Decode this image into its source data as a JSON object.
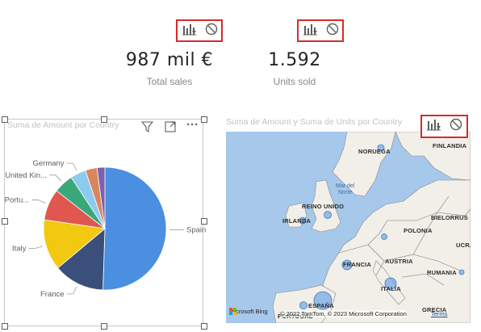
{
  "kpis": [
    {
      "value": "987 mil €",
      "label": "Total sales"
    },
    {
      "value": "1.592",
      "label": "Units sold"
    }
  ],
  "pie_visual": {
    "title": "Suma de Amount por Country",
    "header_icons": [
      "filter-icon",
      "focus-mode-icon",
      "more-options-icon"
    ],
    "more_glyph": "···"
  },
  "map_visual": {
    "title": "Suma de Amount y Suma de Units por Country",
    "labels": {
      "noruega": "NORUEGA",
      "finlandia": "FINLANDIA",
      "mar_del_norte": "Mar del Norte",
      "reino_unido": "REINO UNIDO",
      "irlanda": "IRLANDA",
      "bielorrusia": "BIELORRUS",
      "polonia": "POLONIA",
      "ucrania": "UCRA",
      "francia": "FRANCIA",
      "austria": "AUSTRIA",
      "rumania": "RUMANIA",
      "italia": "ITALIA",
      "espana": "ESPAÑA",
      "portugal": "PORTUGAL",
      "grecia": "GRECIA"
    },
    "attribution": "Microsoft Bing",
    "copyright": "© 2022 TomTom, © 2023 Microsoft Corporation",
    "terms": "Terms"
  },
  "analytics_icons": [
    "analytics-icon",
    "do-not-disturb-icon"
  ],
  "colors": {
    "highlight_border": "#d62b2b",
    "spain": "#4a8fe0",
    "france": "#3a4f7a",
    "italy": "#f2c811",
    "portugal": "#e0574f",
    "united_kingdom": "#3aa878",
    "germany": "#8ccbee",
    "slice7": "#d9865e",
    "slice8": "#7b61b0"
  },
  "chart_data": {
    "type": "pie",
    "title": "Suma de Amount por Country",
    "categories": [
      "Spain",
      "France",
      "Italy",
      "Portu...",
      "United Kin...",
      "Germany",
      "",
      ""
    ],
    "values": [
      49,
      13,
      13,
      8,
      5,
      4,
      3,
      2
    ]
  }
}
